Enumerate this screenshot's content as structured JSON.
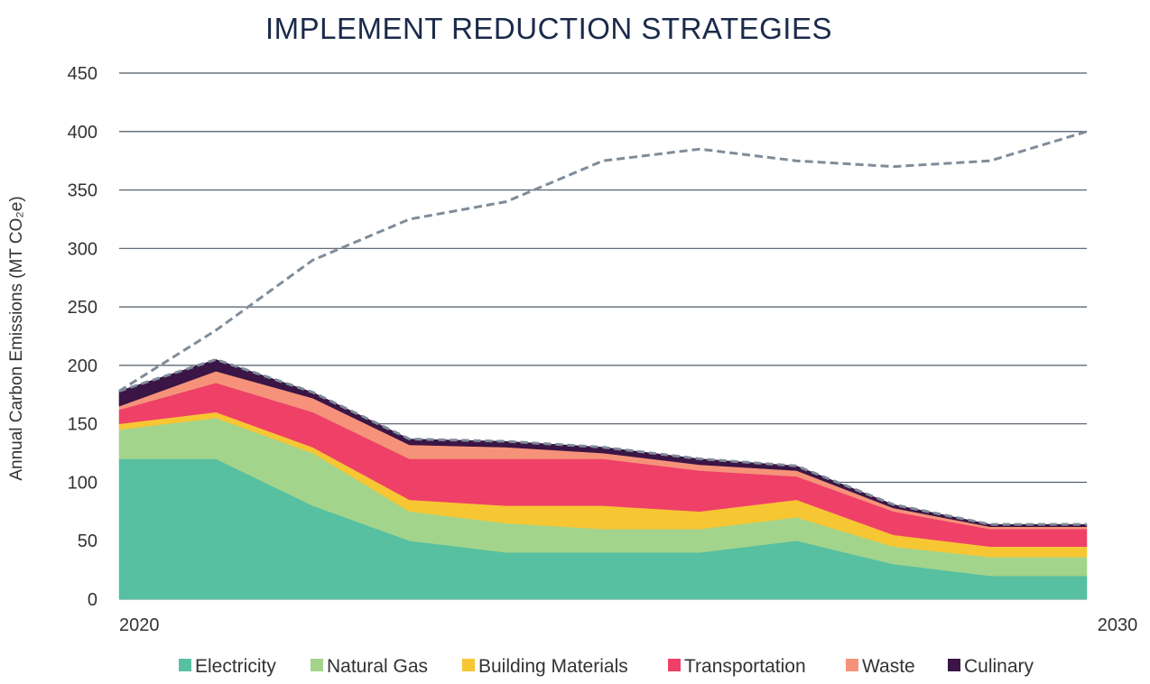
{
  "chart_data": {
    "type": "area",
    "stacked": true,
    "title": "IMPLEMENT REDUCTION STRATEGIES",
    "ylabel": "Annual Carbon Emissions (MT CO₂e)",
    "xlabel": "",
    "ylim": [
      0,
      450
    ],
    "yticks": [
      0,
      50,
      100,
      150,
      200,
      250,
      300,
      350,
      400,
      450
    ],
    "xlim": [
      2020,
      2030
    ],
    "x": [
      2020,
      2021,
      2022,
      2023,
      2024,
      2025,
      2026,
      2027,
      2028,
      2029,
      2030
    ],
    "x_tick_labels": [
      "2020",
      "2030"
    ],
    "grid": "horizontal",
    "legend_position": "bottom",
    "series": [
      {
        "name": "Electricity",
        "color": "#57c0a0",
        "values": [
          120,
          120,
          80,
          50,
          40,
          40,
          40,
          50,
          30,
          20,
          20
        ]
      },
      {
        "name": "Natural Gas",
        "color": "#a3d48c",
        "values": [
          25,
          35,
          45,
          25,
          25,
          20,
          20,
          20,
          15,
          16,
          16
        ]
      },
      {
        "name": "Building Materials",
        "color": "#f7c633",
        "values": [
          5,
          5,
          5,
          10,
          15,
          20,
          15,
          15,
          10,
          9,
          9
        ]
      },
      {
        "name": "Transportation",
        "color": "#ef4068",
        "values": [
          12,
          25,
          30,
          35,
          40,
          40,
          35,
          20,
          20,
          15,
          15
        ]
      },
      {
        "name": "Waste",
        "color": "#f6927a",
        "values": [
          3,
          10,
          12,
          12,
          10,
          5,
          5,
          5,
          3,
          2,
          2
        ]
      },
      {
        "name": "Culinary",
        "color": "#3a1545",
        "values": [
          13,
          10,
          5,
          5,
          5,
          5,
          5,
          4,
          3,
          2,
          2
        ]
      }
    ],
    "reference_lines": [
      {
        "style": "dashed",
        "color": "#7f8c99",
        "values": [
          178,
          230,
          290,
          325,
          340,
          375,
          385,
          375,
          370,
          375,
          400
        ]
      }
    ]
  }
}
